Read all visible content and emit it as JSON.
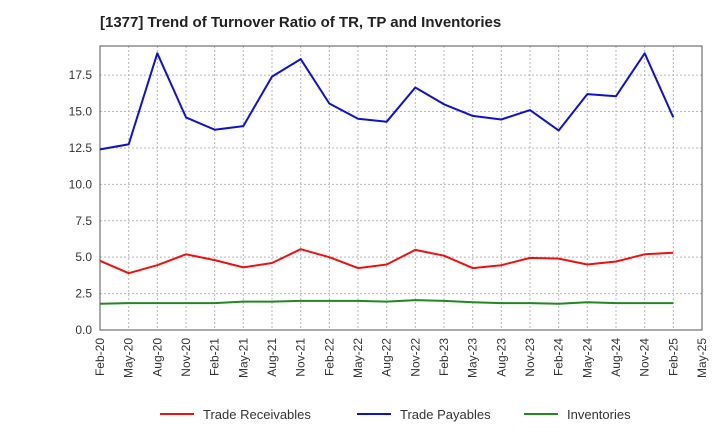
{
  "chart_data": {
    "type": "line",
    "title": "[1377]  Trend of Turnover Ratio of TR, TP and Inventories",
    "xlabel": "",
    "ylabel": "",
    "categories": [
      "Feb-20",
      "May-20",
      "Aug-20",
      "Nov-20",
      "Feb-21",
      "May-21",
      "Aug-21",
      "Nov-21",
      "Feb-22",
      "May-22",
      "Aug-22",
      "Nov-22",
      "Feb-23",
      "May-23",
      "Aug-23",
      "Nov-23",
      "Feb-24",
      "May-24",
      "Aug-24",
      "Nov-24",
      "Feb-25",
      "May-25"
    ],
    "ylim": [
      0,
      19.5
    ],
    "yticks": [
      "0.0",
      "2.5",
      "5.0",
      "7.5",
      "10.0",
      "12.5",
      "15.0",
      "17.5"
    ],
    "grid": true,
    "legend_position": "bottom",
    "series": [
      {
        "name": "Trade Receivables",
        "color": "#ee1111",
        "values": [
          4.75,
          3.9,
          4.45,
          5.2,
          4.8,
          4.3,
          4.6,
          5.55,
          5.0,
          4.25,
          4.5,
          5.5,
          5.1,
          4.25,
          4.45,
          4.95,
          4.9,
          4.5,
          4.7,
          5.2,
          5.3,
          null
        ]
      },
      {
        "name": "Trade Payables",
        "color": "#1111cc",
        "values": [
          12.4,
          12.75,
          19.0,
          14.6,
          13.75,
          14.0,
          17.4,
          18.6,
          15.55,
          14.5,
          14.3,
          16.65,
          15.5,
          14.7,
          14.45,
          15.1,
          13.7,
          16.2,
          16.05,
          19.0,
          14.6,
          null
        ]
      },
      {
        "name": "Inventories",
        "color": "#228822",
        "values": [
          1.8,
          1.85,
          1.85,
          1.85,
          1.85,
          1.95,
          1.95,
          2.0,
          2.0,
          2.0,
          1.95,
          2.05,
          2.0,
          1.9,
          1.85,
          1.85,
          1.8,
          1.9,
          1.85,
          1.85,
          1.85,
          null
        ]
      }
    ]
  }
}
